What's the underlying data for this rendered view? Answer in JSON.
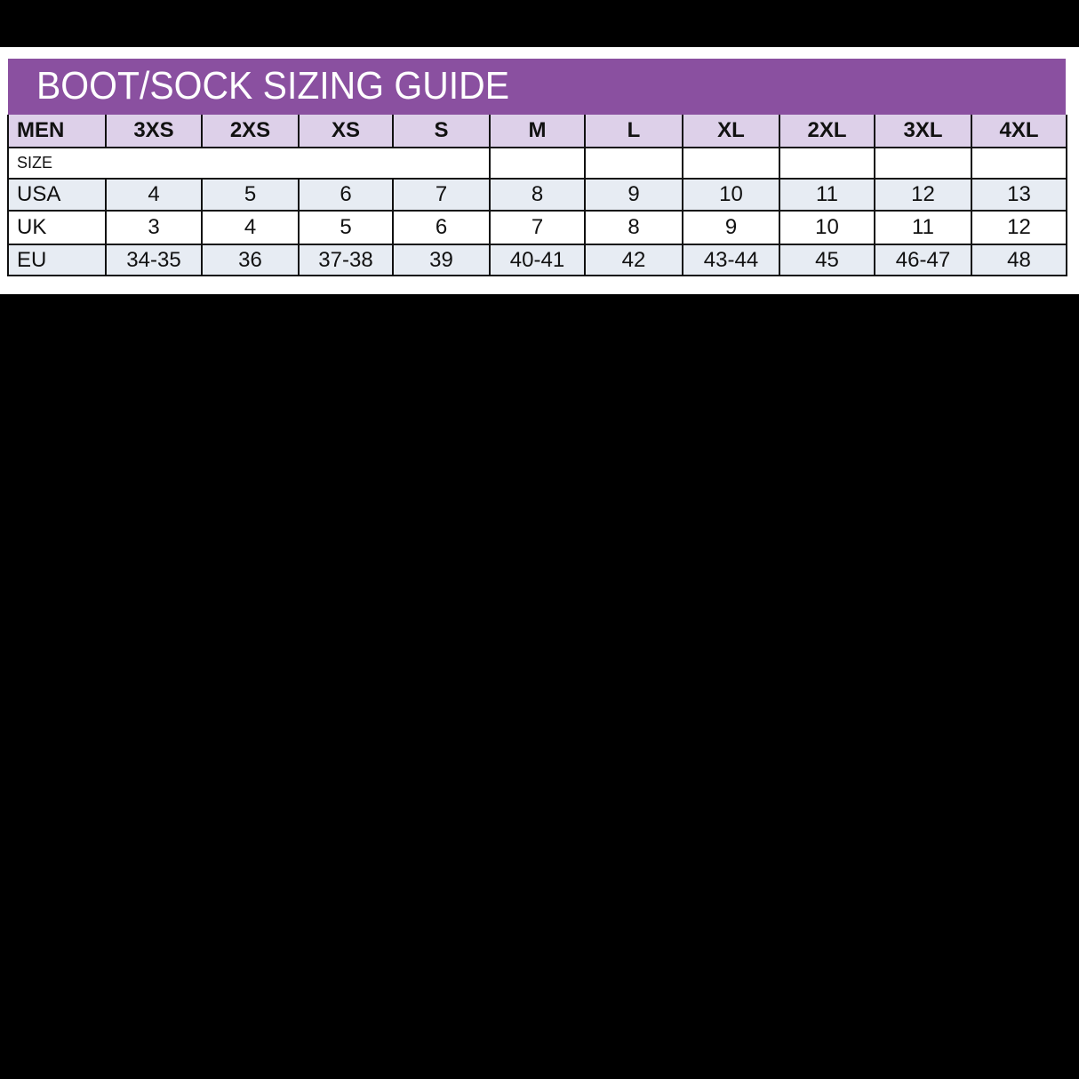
{
  "title": "BOOT/SOCK SIZING GUIDE",
  "colors": {
    "banner": "#8a50a0",
    "header_row": "#ddd0e9",
    "shaded_row": "#e7ecf3"
  },
  "header": {
    "label": "MEN",
    "sizes": [
      "3XS",
      "2XS",
      "XS",
      "S",
      "M",
      "L",
      "XL",
      "2XL",
      "3XL",
      "4XL"
    ]
  },
  "size_label": "SIZE",
  "rows": [
    {
      "label": "USA",
      "values": [
        "4",
        "5",
        "6",
        "7",
        "8",
        "9",
        "10",
        "11",
        "12",
        "13"
      ]
    },
    {
      "label": "UK",
      "values": [
        "3",
        "4",
        "5",
        "6",
        "7",
        "8",
        "9",
        "10",
        "11",
        "12"
      ]
    },
    {
      "label": "EU",
      "values": [
        "34-35",
        "36",
        "37-38",
        "39",
        "40-41",
        "42",
        "43-44",
        "45",
        "46-47",
        "48"
      ]
    }
  ]
}
